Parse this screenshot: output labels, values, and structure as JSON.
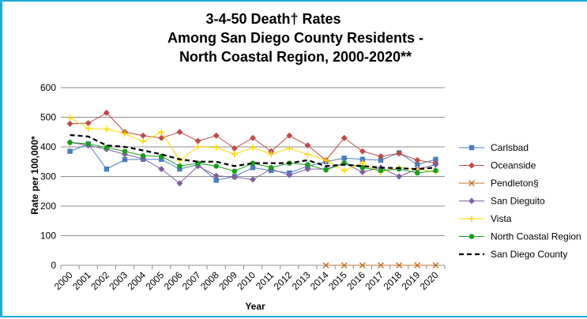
{
  "chart_data": {
    "type": "line",
    "title_lines": [
      "3-4-50 Death† Rates",
      "Among San Diego County Residents -",
      "North Coastal Region, 2000-2020**"
    ],
    "xlabel": "Year",
    "ylabel": "Rate per 100,000*",
    "ylim": [
      0,
      600
    ],
    "yticks": [
      0,
      100,
      200,
      300,
      400,
      500,
      600
    ],
    "grid": "horizontal",
    "legend_position": "right",
    "categories": [
      "2000",
      "2001",
      "2002",
      "2003",
      "2004",
      "2005",
      "2006",
      "2007",
      "2008",
      "2009",
      "2010",
      "2011",
      "2012",
      "2013",
      "2014",
      "2015",
      "2016",
      "2017",
      "2018",
      "2019",
      "2020"
    ],
    "series": [
      {
        "name": "Carlsbad",
        "color": "#4a7ebb",
        "marker": "square",
        "values": [
          385,
          410,
          325,
          357,
          358,
          358,
          325,
          340,
          287,
          300,
          330,
          320,
          312,
          335,
          350,
          362,
          358,
          355,
          380,
          340,
          358
        ]
      },
      {
        "name": "Oceanside",
        "color": "#be4b48",
        "marker": "diamond",
        "values": [
          478,
          480,
          515,
          450,
          438,
          430,
          450,
          420,
          438,
          395,
          430,
          385,
          438,
          405,
          355,
          430,
          385,
          368,
          378,
          355,
          345
        ]
      },
      {
        "name": "Pendleton§",
        "color": "#c0702a",
        "marker": "x",
        "values": [
          null,
          null,
          null,
          null,
          null,
          null,
          null,
          null,
          null,
          null,
          null,
          null,
          null,
          null,
          0,
          0,
          0,
          0,
          0,
          0,
          0
        ]
      },
      {
        "name": "San Dieguito",
        "color": "#7d60a0",
        "marker": "diamond",
        "values": [
          415,
          405,
          392,
          375,
          360,
          325,
          277,
          335,
          302,
          298,
          290,
          325,
          305,
          325,
          325,
          345,
          315,
          330,
          300,
          325,
          340
        ]
      },
      {
        "name": "Vista",
        "color": "#ffd700",
        "marker": "plus",
        "values": [
          498,
          462,
          460,
          445,
          418,
          450,
          355,
          400,
          398,
          375,
          398,
          375,
          395,
          375,
          355,
          320,
          345,
          315,
          330,
          325,
          315
        ]
      },
      {
        "name": "North Coastal Region",
        "color": "#1a9e1a",
        "marker": "circle",
        "values": [
          415,
          410,
          398,
          385,
          370,
          368,
          335,
          345,
          335,
          318,
          345,
          330,
          345,
          340,
          322,
          345,
          330,
          320,
          325,
          312,
          320
        ]
      },
      {
        "name": "San Diego County",
        "color": "#000000",
        "marker": "none",
        "dash": "dashed",
        "values": [
          440,
          435,
          405,
          400,
          388,
          375,
          358,
          350,
          350,
          335,
          345,
          345,
          345,
          355,
          335,
          340,
          335,
          330,
          328,
          325,
          330
        ]
      }
    ]
  }
}
